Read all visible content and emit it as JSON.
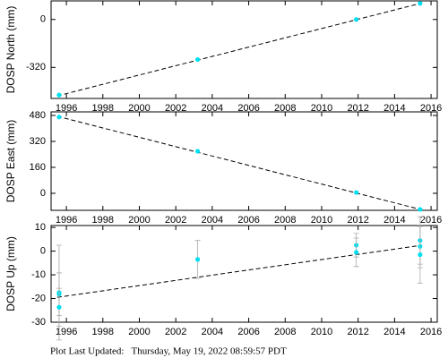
{
  "chart_data": [
    {
      "type": "scatter",
      "ylabel": "DOSP North (mm)",
      "color": "#00e0f0",
      "x": [
        1995.6,
        2003.2,
        2011.9,
        2015.4
      ],
      "values": [
        -504,
        -267,
        0,
        107
      ],
      "fit_x": [
        1995.5,
        2015.5
      ],
      "fit_values": [
        -510,
        110
      ],
      "xlim": [
        1995.16,
        2016.34
      ],
      "ylim": [
        -527,
        124
      ],
      "xticks": [
        1996,
        1998,
        2000,
        2002,
        2004,
        2006,
        2008,
        2010,
        2012,
        2014,
        2016
      ],
      "yticks": [
        -320,
        0
      ]
    },
    {
      "type": "scatter",
      "ylabel": "DOSP East (mm)",
      "color": "#00e0f0",
      "x": [
        1995.6,
        2003.2,
        2011.9,
        2015.4
      ],
      "values": [
        470,
        259,
        5,
        -99
      ],
      "fit_x": [
        1995.5,
        2015.5
      ],
      "fit_values": [
        475,
        -102
      ],
      "xlim": [
        1995.16,
        2016.34
      ],
      "ylim": [
        -105,
        502
      ],
      "xticks": [
        1996,
        1998,
        2000,
        2002,
        2004,
        2006,
        2008,
        2010,
        2012,
        2014,
        2016
      ],
      "yticks": [
        0,
        160,
        320,
        480
      ]
    },
    {
      "type": "scatter",
      "ylabel": "DOSP Up (mm)",
      "color": "#00e0f0",
      "error_color": "#aaaaaa",
      "x": [
        1995.6,
        1995.6,
        1995.6,
        2003.2,
        2011.9,
        2011.9,
        2015.4,
        2015.4,
        2015.4
      ],
      "values": [
        -17.5,
        -18.2,
        -23.7,
        -3.5,
        2.5,
        -0.5,
        4.5,
        2,
        -1.5
      ],
      "errors": [
        20,
        9,
        8,
        8,
        5,
        6,
        10,
        9,
        12
      ],
      "fit_x": [
        1995.5,
        2015.5
      ],
      "fit_values": [
        -19.5,
        2.5
      ],
      "xlim": [
        1995.16,
        2016.34
      ],
      "ylim": [
        -30,
        10.8
      ],
      "xticks": [
        1996,
        1998,
        2000,
        2002,
        2004,
        2006,
        2008,
        2010,
        2012,
        2014,
        2016
      ],
      "yticks": [
        -30,
        -20,
        -10,
        0,
        10
      ]
    }
  ],
  "footer": "Plot Last Updated:   Thursday, May 19, 2022 08:59:57 PDT"
}
